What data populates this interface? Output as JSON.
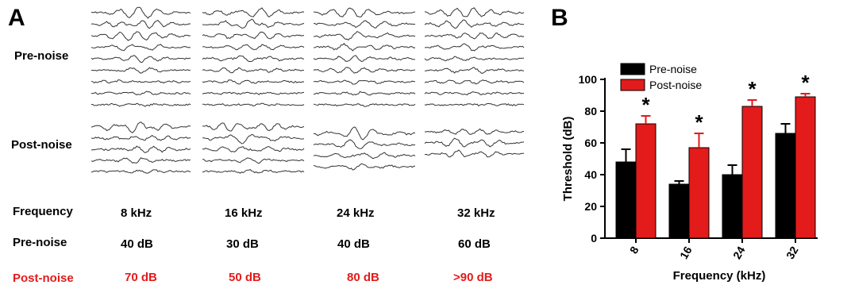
{
  "panel_a": {
    "letter": "A",
    "pre_label": "Pre-noise",
    "post_label": "Post-noise",
    "table": {
      "row_labels": {
        "frequency": "Frequency",
        "pre": "Pre-noise",
        "post": "Post-noise"
      },
      "frequency": [
        "8 kHz",
        "16 kHz",
        "24 kHz",
        "32 kHz"
      ],
      "pre": [
        "40 dB",
        "30 dB",
        "40 dB",
        "60 dB"
      ],
      "post": [
        "70 dB",
        "50 dB",
        "80 dB",
        ">90 dB"
      ]
    }
  },
  "panel_b": {
    "letter": "B"
  },
  "colors": {
    "pre": "#000000",
    "post": "#e31b1b"
  },
  "chart_data": {
    "type": "bar",
    "categories": [
      "8",
      "16",
      "24",
      "32"
    ],
    "series": [
      {
        "name": "Pre-noise",
        "values": [
          48,
          34,
          40,
          66
        ],
        "errors": [
          8,
          2,
          6,
          6
        ]
      },
      {
        "name": "Post-noise",
        "values": [
          72,
          57,
          83,
          89
        ],
        "errors": [
          5,
          9,
          4,
          2
        ]
      }
    ],
    "significance": [
      "*",
      "*",
      "*",
      "*"
    ],
    "xlabel": "Frequency (kHz)",
    "ylabel": "Threshold (dB)",
    "ylim": [
      0,
      100
    ],
    "yticks": [
      0,
      20,
      40,
      60,
      80,
      100
    ],
    "legend_position": "top-left",
    "grid": false
  }
}
